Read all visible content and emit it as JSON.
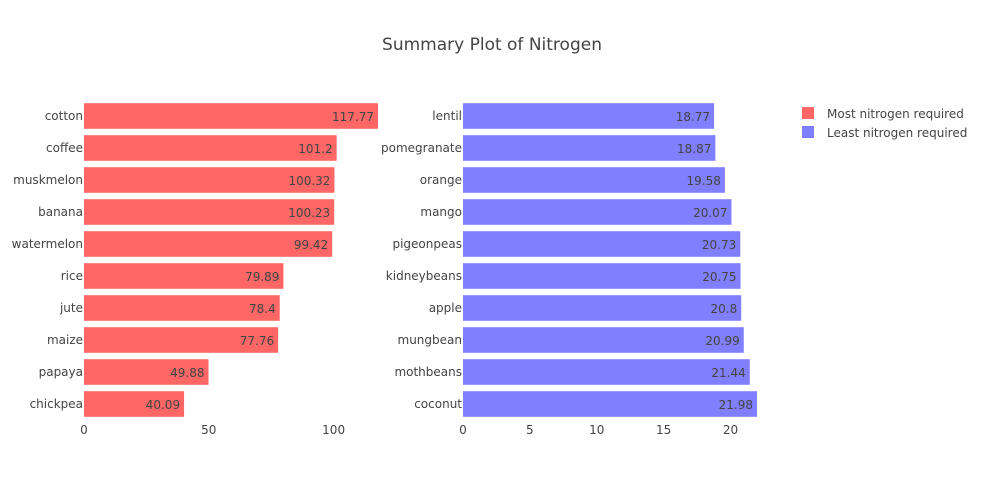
{
  "chart_data": {
    "type": "bar",
    "orientation": "horizontal",
    "title": "Summary Plot of Nitrogen",
    "grid": false,
    "legend_position": "top-right",
    "series": [
      {
        "name": "Most nitrogen required",
        "color": "#ff6666",
        "categories": [
          "cotton",
          "coffee",
          "muskmelon",
          "banana",
          "watermelon",
          "rice",
          "jute",
          "maize",
          "papaya",
          "chickpea"
        ],
        "values": [
          117.77,
          101.2,
          100.32,
          100.23,
          99.42,
          79.89,
          78.4,
          77.76,
          49.88,
          40.09
        ],
        "value_labels": [
          "117.77",
          "101.2",
          "100.32",
          "100.23",
          "99.42",
          "79.89",
          "78.4",
          "77.76",
          "49.88",
          "40.09"
        ],
        "xlim": [
          0,
          117.77
        ],
        "xticks": [
          0,
          50,
          100
        ]
      },
      {
        "name": "Least nitrogen required",
        "color": "#7f7fff",
        "categories": [
          "lentil",
          "pomegranate",
          "orange",
          "mango",
          "pigeonpeas",
          "kidneybeans",
          "apple",
          "mungbean",
          "mothbeans",
          "coconut"
        ],
        "values": [
          18.77,
          18.87,
          19.58,
          20.07,
          20.73,
          20.75,
          20.8,
          20.99,
          21.44,
          21.98
        ],
        "value_labels": [
          "18.77",
          "18.87",
          "19.58",
          "20.07",
          "20.73",
          "20.75",
          "20.8",
          "20.99",
          "21.44",
          "21.98"
        ],
        "xlim": [
          0,
          21.98
        ],
        "xticks": [
          0,
          5,
          10,
          15,
          20
        ]
      }
    ]
  }
}
